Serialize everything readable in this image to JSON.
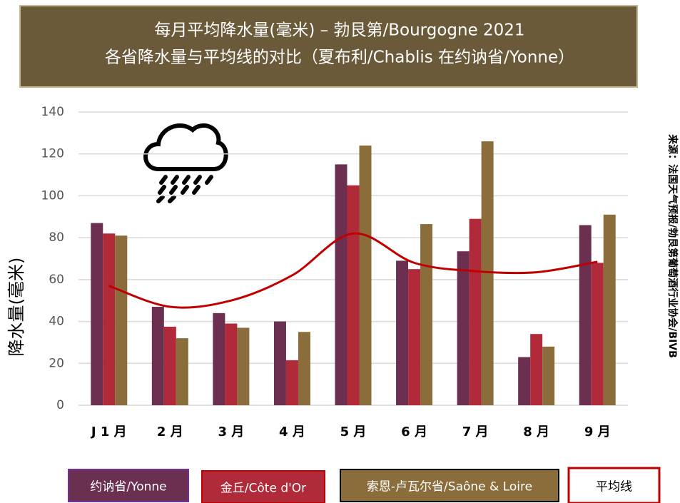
{
  "chart_data": {
    "type": "bar",
    "title": "每月平均降水量(毫米) – 勃艮第/Bourgogne 2021",
    "subtitle": "各省降水量与平均线的对比（夏布利/Chablis 在约讷省/Yonne）",
    "y_label": "降水量(毫米)",
    "source": "来源：法国天气预报/勃艮第葡萄酒行业协会/BIVB",
    "categories": [
      "J 1 月",
      "2 月",
      "3 月",
      "4 月",
      "5 月",
      "6 月",
      "7 月",
      "8 月",
      "9 月"
    ],
    "series": [
      {
        "name": "约讷省/Yonne",
        "color": "#6b3050",
        "values": [
          87,
          47,
          44,
          40,
          115,
          69,
          73.5,
          23,
          86
        ]
      },
      {
        "name": "金丘/Côte d'Or",
        "color": "#b02a3a",
        "values": [
          82,
          37.5,
          39,
          21.5,
          105,
          65,
          89,
          34,
          68
        ]
      },
      {
        "name": "索恩-卢瓦尔省/Saône & Loire",
        "color": "#8a6d3b",
        "values": [
          81,
          32,
          37,
          35,
          124,
          86.5,
          126,
          28,
          91
        ]
      },
      {
        "name": "平均线",
        "color": "#c00000",
        "type": "line",
        "values": [
          57,
          47,
          50,
          62,
          82,
          68,
          64,
          63.5,
          68.5
        ]
      }
    ],
    "ylim": [
      0,
      140
    ],
    "yticks": [
      0,
      20,
      40,
      60,
      80,
      100,
      120,
      140
    ],
    "grid": true,
    "legend": "bottom"
  }
}
